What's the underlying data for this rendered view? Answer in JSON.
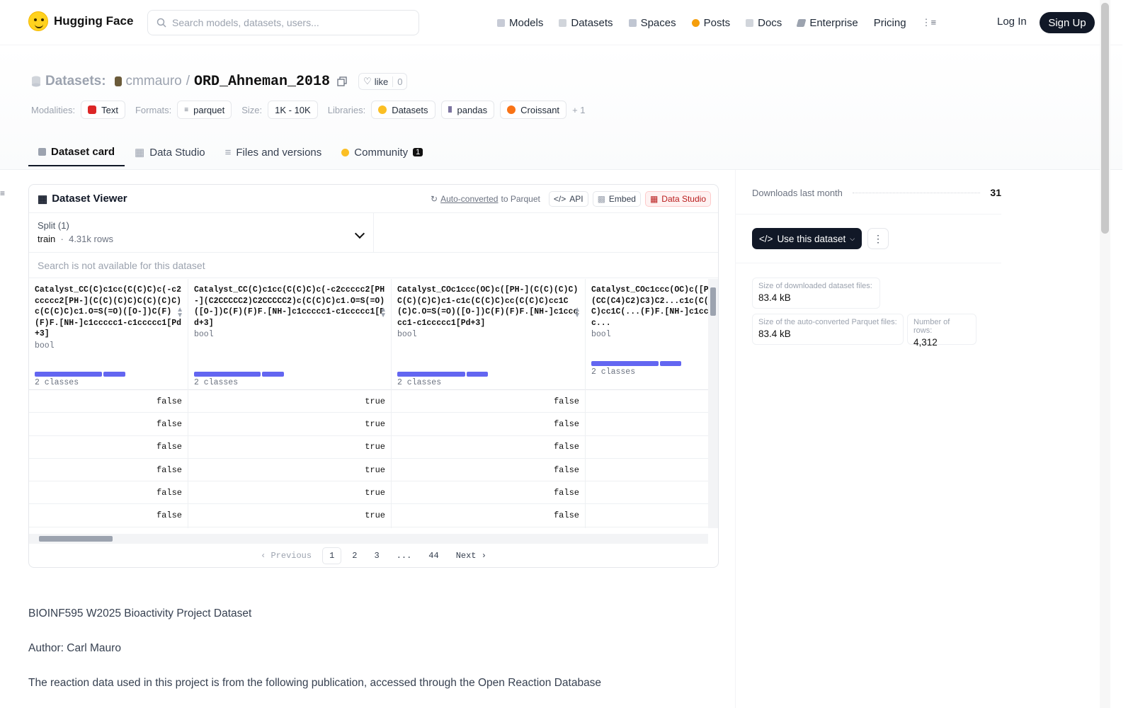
{
  "nav": {
    "brand": "Hugging Face",
    "search_placeholder": "Search models, datasets, users...",
    "links": [
      "Models",
      "Datasets",
      "Spaces",
      "Posts",
      "Docs",
      "Enterprise",
      "Pricing"
    ],
    "login": "Log In",
    "signup": "Sign Up"
  },
  "header": {
    "section": "Datasets:",
    "owner": "cmmauro",
    "sep": "/",
    "name": "ORD_Ahneman_2018",
    "like_label": "like",
    "like_count": "0",
    "modalities_label": "Modalities:",
    "modality": "Text",
    "formats_label": "Formats:",
    "format": "parquet",
    "size_label": "Size:",
    "size": "1K - 10K",
    "libraries_label": "Libraries:",
    "libraries": [
      "Datasets",
      "pandas",
      "Croissant"
    ],
    "more": "+ 1"
  },
  "tabs": [
    {
      "label": "Dataset card"
    },
    {
      "label": "Data Studio"
    },
    {
      "label": "Files and versions"
    },
    {
      "label": "Community",
      "badge": "1"
    }
  ],
  "viewer": {
    "title": "Dataset Viewer",
    "auto_link": "Auto-converted",
    "auto_rest": "to Parquet",
    "api": "API",
    "embed": "Embed",
    "data_studio": "Data Studio",
    "split_label": "Split (1)",
    "split_name": "train",
    "split_rows": "4.31k rows",
    "search_na": "Search is not available for this dataset",
    "columns": [
      {
        "name": "Catalyst_CC(C)c1cc(C(C)C)c(-c2ccccc2[PH-](C(C)(C)C)C(C)(C)C)c(C(C)C)c1.O=S(=O)([O-])C(F)(F)F.[NH-]c1ccccc1-c1ccccc1[Pd+3]",
        "type": "bool",
        "classes": "2 classes",
        "values": [
          "false",
          "false",
          "false",
          "false",
          "false",
          "false"
        ]
      },
      {
        "name": "Catalyst_CC(C)c1cc(C(C)C)c(-c2ccccc2[PH-](C2CCCCC2)C2CCCCC2)c(C(C)C)c1.O=S(=O)([O-])C(F)(F)F.[NH-]c1ccccc1-c1ccccc1[Pd+3]",
        "type": "bool",
        "classes": "2 classes",
        "values": [
          "true",
          "true",
          "true",
          "true",
          "true",
          "true"
        ]
      },
      {
        "name": "Catalyst_COc1ccc(OC)c([PH-](C(C)(C)C)C(C)(C)C)c1-c1c(C(C)C)cc(C(C)C)cc1C(C)C.O=S(=O)([O-])C(F)(F)F.[NH-]c1ccccc1-c1ccccc1[Pd+3]",
        "type": "bool",
        "classes": "2 classes",
        "values": [
          "false",
          "false",
          "false",
          "false",
          "false",
          "false"
        ]
      },
      {
        "name": "Catalyst_COc1ccc(OC)c([PH-](C23CC4CC(CC(C4)C2)C3)C2...c1c(C(C)C)cc(C(C)C)cc1C(...(F)F.[NH-]c1ccccc1-c1ccc...",
        "type": "bool",
        "classes": "2 classes",
        "values": [
          "",
          "",
          "",
          "",
          "",
          ""
        ]
      }
    ],
    "pager": {
      "prev": "Previous",
      "pages": [
        "1",
        "2",
        "3",
        "...",
        "44"
      ],
      "next": "Next"
    }
  },
  "readme": {
    "p1": "BIOINF595 W2025 Bioactivity Project Dataset",
    "p2": "Author: Carl Mauro",
    "p3": "The reaction data used in this project is from the following publication, accessed through the Open Reaction Database"
  },
  "sidebar": {
    "downloads_label": "Downloads last month",
    "downloads_value": "31",
    "use_btn": "Use this dataset",
    "stats": [
      {
        "label": "Size of downloaded dataset files:",
        "value": "83.4 kB"
      },
      {
        "label": "Size of the auto-converted Parquet files:",
        "value": "83.4 kB"
      },
      {
        "label": "Number of rows:",
        "value": "4,312"
      }
    ]
  },
  "colors": {
    "accent": "#6366f1",
    "dark": "#111827"
  }
}
